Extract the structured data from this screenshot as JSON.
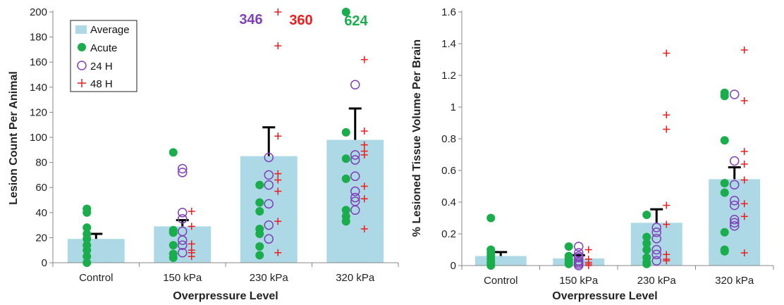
{
  "colors": {
    "average_bar": "#add8e6",
    "acute": "#1aad4b",
    "h24": "#7f40b8",
    "h48": "#ee1c1c",
    "error_bar": "#000000",
    "axis": "#888888"
  },
  "legend": {
    "average": "Average",
    "acute": "Acute",
    "h24": "24 H",
    "h48": "48 H"
  },
  "chart_data": [
    {
      "type": "bar",
      "xlabel": "Overpressure Level",
      "ylabel": "Lesion Count Per Animal",
      "categories": [
        "Control",
        "150 kPa",
        "230 kPa",
        "320 kPa"
      ],
      "ylim": [
        0,
        200
      ],
      "yticks": [
        "0",
        "20",
        "40",
        "60",
        "80",
        "100",
        "120",
        "140",
        "160",
        "180",
        "200"
      ],
      "series": [
        {
          "name": "Average",
          "values": [
            19,
            29,
            85,
            98
          ]
        },
        {
          "name": "Acute",
          "points": [
            [
              43,
              40,
              28,
              23,
              19,
              14,
              10,
              5,
              0
            ],
            [
              88,
              26,
              24,
              14,
              7,
              4
            ],
            [
              62,
              48,
              41,
              27,
              23,
              13,
              6
            ],
            [
              200,
              104,
              83,
              67,
              42,
              37,
              33
            ]
          ]
        },
        {
          "name": "24 H",
          "points": [
            [],
            [
              75,
              72,
              40,
              35,
              25,
              18,
              14,
              8
            ],
            [
              84,
              70,
              62,
              47,
              30,
              19
            ],
            [
              142,
              86,
              82,
              69,
              57,
              52,
              49,
              42
            ]
          ]
        },
        {
          "name": "48 H",
          "points": [
            [],
            [
              41,
              29,
              15,
              10,
              8,
              5
            ],
            [
              200,
              173,
              101,
              71,
              66,
              57,
              33,
              8
            ],
            [
              162,
              105,
              94,
              89,
              86,
              61,
              51,
              27
            ]
          ]
        }
      ],
      "error_bars": [
        23,
        34,
        108,
        123
      ],
      "annotations": [
        {
          "text": "346",
          "series": "24 H",
          "category": "230 kPa"
        },
        {
          "text": "360",
          "series": "48 H",
          "category": "230 kPa"
        },
        {
          "text": "624",
          "series": "Acute",
          "category": "320 kPa"
        }
      ],
      "grid": false,
      "legend": "top-left"
    },
    {
      "type": "bar",
      "xlabel": "Overpressure Level",
      "ylabel": "% Lesioned Tissue Volume Per Brain",
      "categories": [
        "Control",
        "150 kPa",
        "230 kPa",
        "320 kPa"
      ],
      "ylim": [
        0,
        1.6
      ],
      "yticks": [
        "0",
        "0.2",
        "0.4",
        "0.6",
        "0.8",
        "1",
        "1.2",
        "1.4",
        "1.6"
      ],
      "series": [
        {
          "name": "Average",
          "values": [
            0.06,
            0.045,
            0.27,
            0.545
          ]
        },
        {
          "name": "Acute",
          "points": [
            [
              0.3,
              0.1,
              0.08,
              0.06,
              0.04,
              0.02,
              0.01,
              0.0
            ],
            [
              0.12,
              0.06,
              0.04,
              0.02,
              0.01
            ],
            [
              0.32,
              0.18,
              0.14,
              0.1,
              0.05,
              0.02,
              0.01
            ],
            [
              1.09,
              1.07,
              0.79,
              0.52,
              0.46,
              0.21,
              0.1,
              0.09
            ]
          ]
        },
        {
          "name": "24 H",
          "points": [
            [],
            [
              0.12,
              0.08,
              0.06,
              0.05,
              0.03,
              0.02,
              0.01,
              0.0
            ],
            [
              0.24,
              0.21,
              0.17,
              0.1,
              0.07,
              0.03
            ],
            [
              1.08,
              0.66,
              0.51,
              0.41,
              0.38,
              0.29,
              0.27,
              0.25
            ]
          ]
        },
        {
          "name": "48 H",
          "points": [
            [],
            [
              0.1,
              0.04,
              0.02,
              0.01,
              0.0
            ],
            [
              1.34,
              0.95,
              0.86,
              0.38,
              0.26,
              0.07,
              0.04,
              0.03
            ],
            [
              1.36,
              1.04,
              0.72,
              0.64,
              0.54,
              0.39,
              0.31,
              0.08
            ]
          ]
        }
      ],
      "error_bars": [
        0.085,
        0.065,
        0.355,
        0.62
      ],
      "grid": false,
      "legend": "none"
    }
  ]
}
